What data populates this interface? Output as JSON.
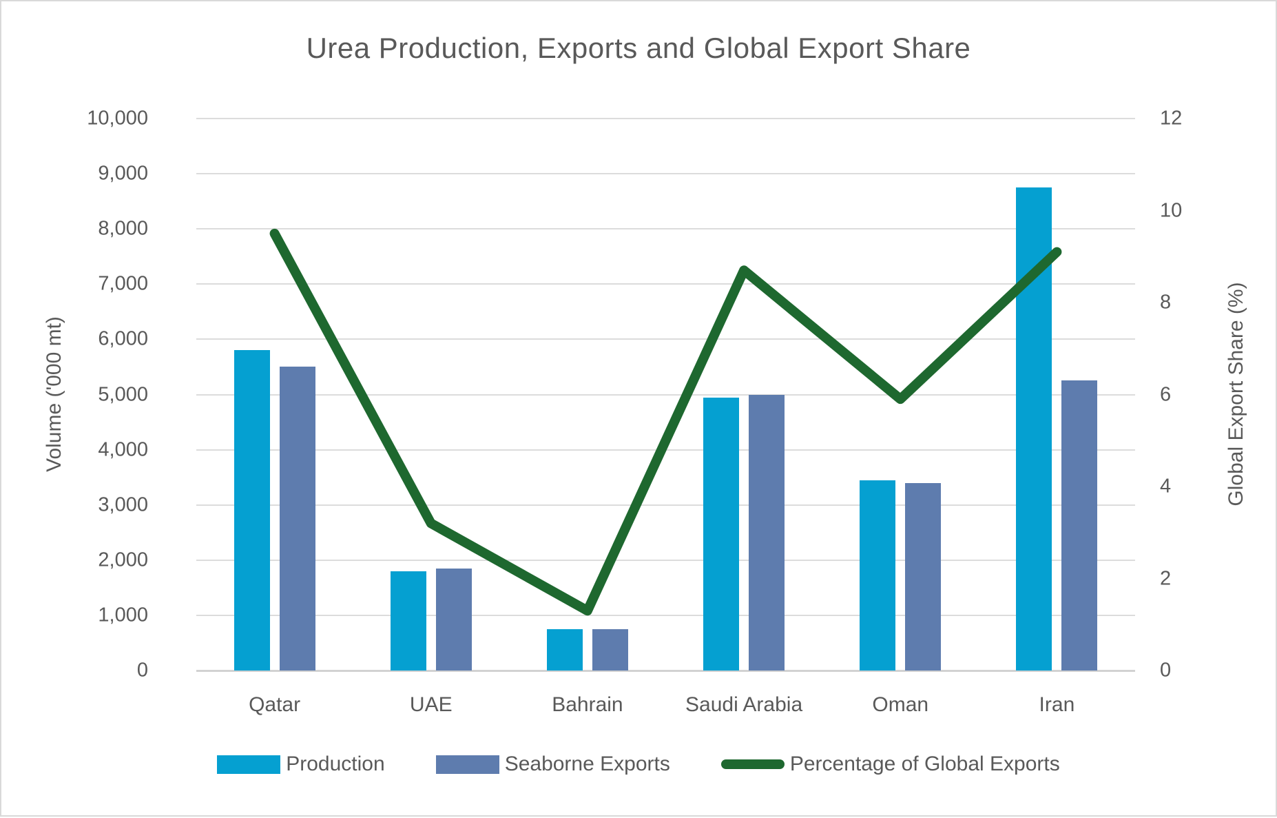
{
  "chart_data": {
    "type": "combo-bar-line",
    "title": "Urea Production, Exports and Global Export Share",
    "categories": [
      "Qatar",
      "UAE",
      "Bahrain",
      "Saudi Arabia",
      "Oman",
      "Iran"
    ],
    "series": [
      {
        "name": "Production",
        "type": "bar",
        "axis": "left",
        "color": "#05A0D1",
        "values": [
          5800,
          1800,
          750,
          4950,
          3450,
          8750
        ]
      },
      {
        "name": "Seaborne Exports",
        "type": "bar",
        "axis": "left",
        "color": "#5E7CAE",
        "values": [
          5500,
          1850,
          750,
          5000,
          3400,
          5250
        ]
      },
      {
        "name": "Percentage of Global Exports",
        "type": "line",
        "axis": "right",
        "color": "#1E682F",
        "values": [
          9.5,
          3.2,
          1.3,
          8.7,
          5.9,
          9.1
        ]
      }
    ],
    "left_axis": {
      "label": "Volume ('000 mt)",
      "min": 0,
      "max": 10000,
      "step": 1000,
      "tick_format": "comma"
    },
    "right_axis": {
      "label": "Global Export Share (%)",
      "min": 0,
      "max": 12,
      "step": 2
    },
    "grid": true,
    "legend_position": "bottom"
  },
  "colors": {
    "text": "#595959",
    "gridline": "#dcdcdc",
    "axis_line": "#d2d2d2",
    "border": "#d9d9d9"
  }
}
